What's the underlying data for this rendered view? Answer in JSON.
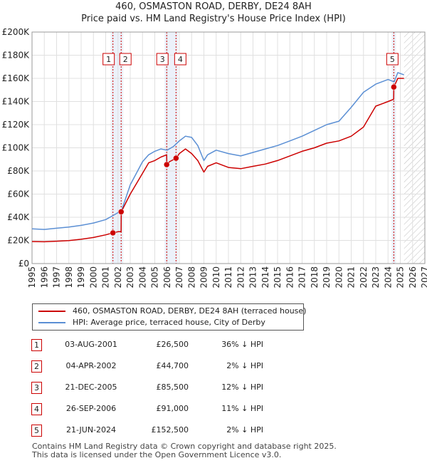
{
  "title": "460, OSMASTON ROAD, DERBY, DE24 8AH",
  "subtitle": "Price paid vs. HM Land Registry's House Price Index (HPI)",
  "colors": {
    "price": "#cc0000",
    "hpi": "#5b8fd4",
    "grid": "#e0e0e0",
    "span": "#dde6f5"
  },
  "chart_data": {
    "type": "line",
    "title": "Price paid vs. HM Land Registry's House Price Index (HPI)",
    "xlabel": "",
    "ylabel": "",
    "xlim": [
      1995,
      2027
    ],
    "ylim": [
      0,
      200000
    ],
    "ytick_values": [
      0,
      20000,
      40000,
      60000,
      80000,
      100000,
      120000,
      140000,
      160000,
      180000,
      200000
    ],
    "ytick_labels": [
      "£0",
      "£20K",
      "£40K",
      "£60K",
      "£80K",
      "£100K",
      "£120K",
      "£140K",
      "£160K",
      "£180K",
      "£200K"
    ],
    "xtick_labels": [
      "1995",
      "1996",
      "1997",
      "1998",
      "1999",
      "2000",
      "2001",
      "2002",
      "2003",
      "2004",
      "2005",
      "2006",
      "2007",
      "2008",
      "2009",
      "2010",
      "2011",
      "2012",
      "2013",
      "2014",
      "2015",
      "2016",
      "2017",
      "2018",
      "2019",
      "2020",
      "2021",
      "2022",
      "2023",
      "2024",
      "2025",
      "2026",
      "2027"
    ],
    "projection_start": 2025.3,
    "series": [
      {
        "name": "460, OSMASTON ROAD, DERBY, DE24 8AH (terraced house)",
        "color": "#cc0000",
        "x": [
          1995,
          1996,
          1997,
          1998,
          1999,
          2000,
          2001,
          2001.59,
          2001.6,
          2002.0,
          2002.26,
          2002.27,
          2003,
          2004,
          2004.5,
          2005,
          2005.5,
          2005.97,
          2005.98,
          2006.2,
          2006.73,
          2006.74,
          2007,
          2007.5,
          2008,
          2008.5,
          2009,
          2009.3,
          2010,
          2011,
          2012,
          2013,
          2014,
          2015,
          2016,
          2017,
          2018,
          2019,
          2020,
          2021,
          2022,
          2023,
          2023.5,
          2024,
          2024.46,
          2024.47,
          2024.8,
          2025.3
        ],
        "values": [
          19000,
          18800,
          19300,
          19800,
          21000,
          22500,
          24800,
          26500,
          26500,
          27500,
          27500,
          44700,
          60000,
          78000,
          87000,
          89000,
          92000,
          94000,
          85500,
          88000,
          91000,
          91000,
          95000,
          99000,
          95000,
          89000,
          79000,
          84000,
          87000,
          83000,
          82000,
          84000,
          86000,
          89000,
          93000,
          97000,
          100000,
          104000,
          106000,
          110000,
          118000,
          136000,
          138000,
          140000,
          142000,
          152500,
          160000,
          160000
        ]
      },
      {
        "name": "HPI: Average price, terraced house, City of Derby",
        "color": "#5b8fd4",
        "x": [
          1995,
          1996,
          1997,
          1998,
          1999,
          2000,
          2001,
          2001.6,
          2002,
          2002.3,
          2003,
          2004,
          2004.5,
          2005,
          2005.5,
          2006,
          2006.5,
          2007,
          2007.5,
          2008,
          2008.5,
          2009,
          2009.3,
          2010,
          2011,
          2012,
          2013,
          2014,
          2015,
          2016,
          2017,
          2018,
          2019,
          2020,
          2021,
          2022,
          2023,
          2024,
          2024.5,
          2024.8,
          2025.3
        ],
        "values": [
          30000,
          29500,
          30500,
          31500,
          33000,
          35000,
          38000,
          41500,
          44000,
          46000,
          68000,
          88000,
          94000,
          97000,
          99000,
          98000,
          101000,
          106000,
          110000,
          109000,
          102000,
          89000,
          94000,
          98000,
          95000,
          93000,
          96000,
          99000,
          102000,
          106000,
          110000,
          115000,
          120000,
          123000,
          135000,
          148000,
          155000,
          159000,
          157000,
          165000,
          163000
        ]
      }
    ],
    "transactions": [
      {
        "id": "1",
        "x": 2001.59,
        "price": 26500
      },
      {
        "id": "2",
        "x": 2002.26,
        "price": 44700
      },
      {
        "id": "3",
        "x": 2005.97,
        "price": 85500
      },
      {
        "id": "4",
        "x": 2006.73,
        "price": 91000
      },
      {
        "id": "5",
        "x": 2024.47,
        "price": 152500
      }
    ]
  },
  "legend": [
    {
      "label": "460, OSMASTON ROAD, DERBY, DE24 8AH (terraced house)",
      "color": "#cc0000"
    },
    {
      "label": "HPI: Average price, terraced house, City of Derby",
      "color": "#5b8fd4"
    }
  ],
  "table": [
    {
      "num": "1",
      "date": "03-AUG-2001",
      "price": "£26,500",
      "hpi": "36% ↓ HPI"
    },
    {
      "num": "2",
      "date": "04-APR-2002",
      "price": "£44,700",
      "hpi": "2% ↓ HPI"
    },
    {
      "num": "3",
      "date": "21-DEC-2005",
      "price": "£85,500",
      "hpi": "12% ↓ HPI"
    },
    {
      "num": "4",
      "date": "26-SEP-2006",
      "price": "£91,000",
      "hpi": "11% ↓ HPI"
    },
    {
      "num": "5",
      "date": "21-JUN-2024",
      "price": "£152,500",
      "hpi": "2% ↓ HPI"
    }
  ],
  "footer": {
    "line1": "Contains HM Land Registry data © Crown copyright and database right 2025.",
    "line2": "This data is licensed under the Open Government Licence v3.0."
  }
}
